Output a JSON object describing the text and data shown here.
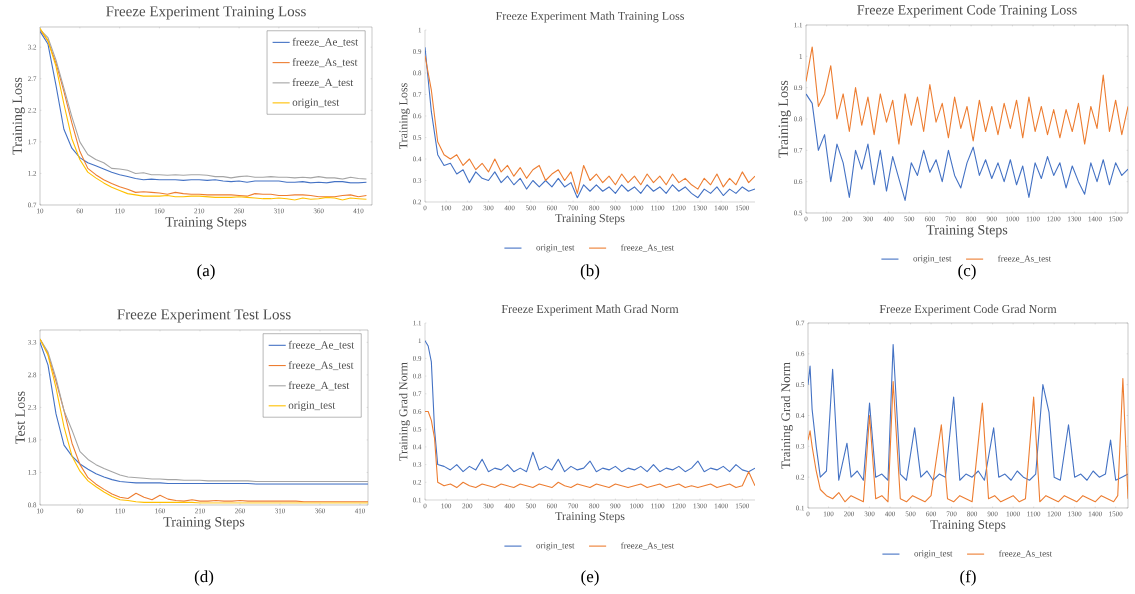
{
  "chart_data": [
    {
      "type": "line",
      "title": "Freeze Experiment Training Loss",
      "xlabel": "Training Steps",
      "ylabel": "Training Loss",
      "legend": "top right",
      "annotations": [
        "(a)"
      ],
      "xlim": [
        10,
        427
      ],
      "ylim": [
        0.7,
        3.52
      ],
      "xticks": [
        10,
        60,
        110,
        160,
        210,
        260,
        310,
        360,
        410
      ],
      "yticks": [
        0.7,
        1.2,
        1.7,
        2.2,
        2.7,
        3.2
      ],
      "x": [
        10,
        20,
        30,
        40,
        50,
        60,
        70,
        80,
        90,
        100,
        110,
        120,
        130,
        140,
        150,
        160,
        170,
        180,
        190,
        200,
        210,
        220,
        230,
        240,
        250,
        260,
        270,
        280,
        290,
        300,
        310,
        320,
        330,
        340,
        350,
        360,
        370,
        380,
        390,
        400,
        410,
        420
      ],
      "series": [
        {
          "name": "freeze_Ae_test",
          "color": "#4472c4",
          "values": [
            3.45,
            3.25,
            2.6,
            1.9,
            1.6,
            1.45,
            1.37,
            1.32,
            1.27,
            1.22,
            1.18,
            1.15,
            1.12,
            1.1,
            1.11,
            1.1,
            1.1,
            1.1,
            1.09,
            1.1,
            1.1,
            1.09,
            1.1,
            1.08,
            1.07,
            1.08,
            1.06,
            1.08,
            1.08,
            1.08,
            1.08,
            1.06,
            1.06,
            1.07,
            1.05,
            1.06,
            1.05,
            1.07,
            1.07,
            1.05,
            1.05,
            1.06
          ]
        },
        {
          "name": "freeze_As_test",
          "color": "#ed7d31",
          "values": [
            3.48,
            3.3,
            2.95,
            2.5,
            2.0,
            1.55,
            1.28,
            1.18,
            1.1,
            1.04,
            0.99,
            0.95,
            0.9,
            0.91,
            0.9,
            0.89,
            0.87,
            0.9,
            0.88,
            0.87,
            0.87,
            0.86,
            0.86,
            0.86,
            0.86,
            0.85,
            0.84,
            0.88,
            0.87,
            0.87,
            0.85,
            0.85,
            0.86,
            0.86,
            0.85,
            0.83,
            0.83,
            0.83,
            0.85,
            0.86,
            0.83,
            0.85
          ]
        },
        {
          "name": "freeze_A_test",
          "color": "#a5a5a5",
          "values": [
            3.48,
            3.35,
            3.0,
            2.55,
            2.1,
            1.7,
            1.5,
            1.42,
            1.37,
            1.28,
            1.27,
            1.25,
            1.2,
            1.21,
            1.18,
            1.18,
            1.17,
            1.18,
            1.17,
            1.18,
            1.18,
            1.17,
            1.15,
            1.15,
            1.13,
            1.15,
            1.16,
            1.14,
            1.14,
            1.15,
            1.14,
            1.14,
            1.13,
            1.14,
            1.13,
            1.15,
            1.13,
            1.13,
            1.11,
            1.14,
            1.12,
            1.11
          ]
        },
        {
          "name": "origin_test",
          "color": "#ffc000",
          "values": [
            3.5,
            3.3,
            2.9,
            2.3,
            1.75,
            1.42,
            1.22,
            1.13,
            1.05,
            0.98,
            0.93,
            0.88,
            0.86,
            0.84,
            0.84,
            0.84,
            0.85,
            0.83,
            0.83,
            0.84,
            0.84,
            0.83,
            0.82,
            0.82,
            0.82,
            0.83,
            0.82,
            0.81,
            0.8,
            0.8,
            0.81,
            0.8,
            0.78,
            0.81,
            0.79,
            0.8,
            0.82,
            0.81,
            0.78,
            0.81,
            0.8,
            0.79
          ]
        }
      ]
    },
    {
      "type": "line",
      "title": "Freeze Experiment Math Training Loss",
      "xlabel": "Training Steps",
      "ylabel": "Training Loss",
      "legend": "bottom",
      "annotations": [
        "(b)"
      ],
      "xlim": [
        0,
        1560
      ],
      "ylim": [
        0.2,
        1
      ],
      "xticks": [
        0,
        100,
        200,
        300,
        400,
        500,
        600,
        700,
        800,
        900,
        1000,
        1100,
        1200,
        1300,
        1400,
        1500
      ],
      "yticks": [
        0.2,
        0.3,
        0.4,
        0.5,
        0.6,
        0.7,
        0.8,
        0.9,
        1
      ],
      "x": [
        0,
        30,
        60,
        90,
        120,
        150,
        180,
        210,
        240,
        270,
        300,
        330,
        360,
        390,
        420,
        450,
        480,
        510,
        540,
        570,
        600,
        630,
        660,
        690,
        720,
        750,
        780,
        810,
        840,
        870,
        900,
        930,
        960,
        990,
        1020,
        1050,
        1080,
        1110,
        1140,
        1170,
        1200,
        1230,
        1260,
        1290,
        1320,
        1350,
        1380,
        1410,
        1440,
        1470,
        1500,
        1530,
        1560
      ],
      "series": [
        {
          "name": "origin_test",
          "color": "#4472c4",
          "values": [
            0.92,
            0.62,
            0.42,
            0.37,
            0.38,
            0.33,
            0.35,
            0.29,
            0.34,
            0.31,
            0.3,
            0.34,
            0.29,
            0.32,
            0.28,
            0.31,
            0.26,
            0.3,
            0.27,
            0.3,
            0.27,
            0.31,
            0.27,
            0.29,
            0.22,
            0.28,
            0.25,
            0.28,
            0.25,
            0.27,
            0.24,
            0.28,
            0.25,
            0.27,
            0.24,
            0.28,
            0.25,
            0.27,
            0.24,
            0.28,
            0.25,
            0.27,
            0.24,
            0.22,
            0.26,
            0.24,
            0.27,
            0.23,
            0.26,
            0.24,
            0.27,
            0.25,
            0.26
          ]
        },
        {
          "name": "freeze_As_test",
          "color": "#ed7d31",
          "values": [
            0.88,
            0.72,
            0.48,
            0.42,
            0.4,
            0.42,
            0.37,
            0.4,
            0.35,
            0.38,
            0.34,
            0.4,
            0.34,
            0.37,
            0.32,
            0.36,
            0.31,
            0.35,
            0.37,
            0.3,
            0.33,
            0.35,
            0.3,
            0.34,
            0.24,
            0.37,
            0.3,
            0.33,
            0.29,
            0.32,
            0.28,
            0.33,
            0.29,
            0.32,
            0.28,
            0.33,
            0.29,
            0.32,
            0.28,
            0.33,
            0.29,
            0.31,
            0.28,
            0.26,
            0.31,
            0.28,
            0.33,
            0.27,
            0.31,
            0.28,
            0.34,
            0.29,
            0.32
          ]
        }
      ]
    },
    {
      "type": "line",
      "title": "Freeze Experiment Code Training Loss",
      "xlabel": "Training Steps",
      "ylabel": "Training Loss",
      "legend": "bottom",
      "annotations": [
        "(c)"
      ],
      "xlim": [
        0,
        1560
      ],
      "ylim": [
        0.5,
        1.1
      ],
      "xticks": [
        0,
        100,
        200,
        300,
        400,
        500,
        600,
        700,
        800,
        900,
        1000,
        1100,
        1200,
        1300,
        1400,
        1500
      ],
      "yticks": [
        0.5,
        0.6,
        0.7,
        0.8,
        0.9,
        1,
        1.1
      ],
      "x": [
        0,
        30,
        60,
        90,
        120,
        150,
        180,
        210,
        240,
        270,
        300,
        330,
        360,
        390,
        420,
        450,
        480,
        510,
        540,
        570,
        600,
        630,
        660,
        690,
        720,
        750,
        780,
        810,
        840,
        870,
        900,
        930,
        960,
        990,
        1020,
        1050,
        1080,
        1110,
        1140,
        1170,
        1200,
        1230,
        1260,
        1290,
        1320,
        1350,
        1380,
        1410,
        1440,
        1470,
        1500,
        1530,
        1560
      ],
      "series": [
        {
          "name": "origin_test",
          "color": "#4472c4",
          "values": [
            0.88,
            0.85,
            0.7,
            0.75,
            0.6,
            0.72,
            0.66,
            0.55,
            0.7,
            0.64,
            0.72,
            0.59,
            0.7,
            0.57,
            0.68,
            0.61,
            0.54,
            0.66,
            0.62,
            0.7,
            0.63,
            0.67,
            0.6,
            0.7,
            0.62,
            0.58,
            0.66,
            0.71,
            0.62,
            0.67,
            0.61,
            0.66,
            0.6,
            0.67,
            0.59,
            0.65,
            0.55,
            0.66,
            0.61,
            0.68,
            0.62,
            0.66,
            0.58,
            0.65,
            0.6,
            0.56,
            0.66,
            0.6,
            0.67,
            0.59,
            0.66,
            0.62,
            0.64
          ]
        },
        {
          "name": "freeze_As_test",
          "color": "#ed7d31",
          "values": [
            0.92,
            1.03,
            0.84,
            0.88,
            0.97,
            0.8,
            0.88,
            0.76,
            0.9,
            0.78,
            0.87,
            0.75,
            0.88,
            0.79,
            0.86,
            0.72,
            0.88,
            0.78,
            0.87,
            0.76,
            0.91,
            0.79,
            0.85,
            0.74,
            0.87,
            0.77,
            0.84,
            0.73,
            0.86,
            0.76,
            0.84,
            0.75,
            0.85,
            0.77,
            0.86,
            0.74,
            0.87,
            0.76,
            0.84,
            0.75,
            0.83,
            0.74,
            0.83,
            0.76,
            0.85,
            0.72,
            0.84,
            0.77,
            0.94,
            0.76,
            0.86,
            0.75,
            0.84
          ]
        }
      ]
    },
    {
      "type": "line",
      "title": "Freeze Experiment Test Loss",
      "xlabel": "Training Steps",
      "ylabel": "Test Loss",
      "legend": "top right",
      "annotations": [
        "(d)"
      ],
      "xlim": [
        10,
        420
      ],
      "ylim": [
        0.8,
        3.49
      ],
      "xticks": [
        10,
        60,
        110,
        160,
        210,
        260,
        310,
        360,
        410
      ],
      "yticks": [
        0.8,
        1.3,
        1.8,
        2.3,
        2.8,
        3.3
      ],
      "x": [
        10,
        20,
        30,
        40,
        50,
        60,
        70,
        80,
        90,
        100,
        110,
        120,
        130,
        140,
        150,
        160,
        170,
        180,
        190,
        200,
        210,
        220,
        230,
        240,
        250,
        260,
        270,
        280,
        290,
        300,
        310,
        320,
        330,
        340,
        350,
        360,
        370,
        380,
        390,
        400,
        410,
        420
      ],
      "series": [
        {
          "name": "freeze_Ae_test",
          "color": "#4472c4",
          "values": [
            3.3,
            2.95,
            2.2,
            1.72,
            1.55,
            1.43,
            1.35,
            1.28,
            1.23,
            1.19,
            1.16,
            1.15,
            1.14,
            1.14,
            1.14,
            1.14,
            1.13,
            1.13,
            1.13,
            1.13,
            1.13,
            1.13,
            1.13,
            1.13,
            1.13,
            1.13,
            1.13,
            1.12,
            1.12,
            1.12,
            1.12,
            1.12,
            1.12,
            1.12,
            1.12,
            1.12,
            1.12,
            1.12,
            1.12,
            1.12,
            1.12,
            1.12
          ]
        },
        {
          "name": "freeze_As_test",
          "color": "#ed7d31",
          "values": [
            3.35,
            3.12,
            2.7,
            2.25,
            1.75,
            1.42,
            1.22,
            1.12,
            1.04,
            0.97,
            0.92,
            0.9,
            0.98,
            0.92,
            0.88,
            0.95,
            0.89,
            0.87,
            0.86,
            0.88,
            0.86,
            0.86,
            0.87,
            0.86,
            0.86,
            0.87,
            0.86,
            0.86,
            0.86,
            0.86,
            0.86,
            0.86,
            0.86,
            0.85,
            0.85,
            0.85,
            0.85,
            0.85,
            0.85,
            0.85,
            0.85,
            0.85
          ]
        },
        {
          "name": "freeze_A_test",
          "color": "#a5a5a5",
          "values": [
            3.35,
            3.15,
            2.75,
            2.25,
            1.95,
            1.62,
            1.5,
            1.42,
            1.36,
            1.31,
            1.26,
            1.23,
            1.22,
            1.21,
            1.2,
            1.2,
            1.19,
            1.19,
            1.18,
            1.18,
            1.18,
            1.17,
            1.17,
            1.17,
            1.17,
            1.17,
            1.17,
            1.16,
            1.16,
            1.16,
            1.16,
            1.16,
            1.16,
            1.16,
            1.16,
            1.16,
            1.16,
            1.16,
            1.16,
            1.16,
            1.16,
            1.16
          ]
        },
        {
          "name": "origin_test",
          "color": "#ffc000",
          "values": [
            3.35,
            3.1,
            2.6,
            2.0,
            1.55,
            1.32,
            1.17,
            1.08,
            1.0,
            0.93,
            0.88,
            0.87,
            0.85,
            0.84,
            0.84,
            0.84,
            0.84,
            0.84,
            0.84,
            0.84,
            0.83,
            0.83,
            0.83,
            0.83,
            0.83,
            0.83,
            0.83,
            0.83,
            0.83,
            0.83,
            0.83,
            0.83,
            0.83,
            0.83,
            0.83,
            0.83,
            0.83,
            0.83,
            0.83,
            0.83,
            0.83,
            0.83
          ]
        }
      ]
    },
    {
      "type": "line",
      "title": "Freeze Experiment Math Grad Norm",
      "xlabel": "Training Steps",
      "ylabel": "Training Grad Norm",
      "legend": "bottom",
      "annotations": [
        "(e)"
      ],
      "xlim": [
        0,
        1560
      ],
      "ylim": [
        0.1,
        1.1
      ],
      "xticks": [
        0,
        100,
        200,
        300,
        400,
        500,
        600,
        700,
        800,
        900,
        1000,
        1100,
        1200,
        1300,
        1400,
        1500
      ],
      "yticks": [
        0.1,
        0.2,
        0.3,
        0.4,
        0.5,
        0.6,
        0.7,
        0.8,
        0.9,
        1,
        1.1
      ],
      "x": [
        0,
        15,
        30,
        45,
        60,
        90,
        120,
        150,
        180,
        210,
        240,
        270,
        300,
        330,
        360,
        390,
        420,
        450,
        480,
        510,
        540,
        570,
        600,
        630,
        660,
        690,
        720,
        750,
        780,
        810,
        840,
        870,
        900,
        930,
        960,
        990,
        1020,
        1050,
        1080,
        1110,
        1140,
        1170,
        1200,
        1230,
        1260,
        1290,
        1320,
        1350,
        1380,
        1410,
        1440,
        1470,
        1500,
        1530,
        1560
      ],
      "series": [
        {
          "name": "origin_test",
          "color": "#4472c4",
          "values": [
            1.0,
            0.97,
            0.88,
            0.5,
            0.3,
            0.29,
            0.27,
            0.3,
            0.26,
            0.29,
            0.27,
            0.33,
            0.26,
            0.28,
            0.27,
            0.3,
            0.26,
            0.28,
            0.26,
            0.37,
            0.27,
            0.29,
            0.27,
            0.33,
            0.26,
            0.29,
            0.27,
            0.28,
            0.32,
            0.26,
            0.28,
            0.27,
            0.29,
            0.26,
            0.28,
            0.27,
            0.29,
            0.26,
            0.3,
            0.26,
            0.28,
            0.27,
            0.29,
            0.26,
            0.28,
            0.32,
            0.26,
            0.28,
            0.27,
            0.29,
            0.26,
            0.3,
            0.27,
            0.26,
            0.28
          ]
        },
        {
          "name": "freeze_As_test",
          "color": "#ed7d31",
          "values": [
            0.6,
            0.6,
            0.55,
            0.45,
            0.2,
            0.18,
            0.19,
            0.17,
            0.2,
            0.18,
            0.17,
            0.19,
            0.18,
            0.17,
            0.19,
            0.18,
            0.17,
            0.19,
            0.18,
            0.17,
            0.19,
            0.18,
            0.17,
            0.2,
            0.18,
            0.17,
            0.19,
            0.18,
            0.17,
            0.19,
            0.18,
            0.17,
            0.19,
            0.18,
            0.17,
            0.18,
            0.19,
            0.17,
            0.18,
            0.19,
            0.17,
            0.18,
            0.19,
            0.17,
            0.18,
            0.17,
            0.18,
            0.19,
            0.17,
            0.18,
            0.19,
            0.17,
            0.18,
            0.26,
            0.18
          ]
        }
      ]
    },
    {
      "type": "line",
      "title": "Freeze Experiment Code Grad Norm",
      "xlabel": "Training Steps",
      "ylabel": "Training Grad Norm",
      "legend": "bottom",
      "annotations": [
        "(f)"
      ],
      "xlim": [
        0,
        1560
      ],
      "ylim": [
        0.1,
        0.7
      ],
      "xticks": [
        0,
        100,
        200,
        300,
        400,
        500,
        600,
        700,
        800,
        900,
        1000,
        1100,
        1200,
        1300,
        1400,
        1500
      ],
      "yticks": [
        0.1,
        0.2,
        0.3,
        0.4,
        0.5,
        0.6,
        0.7
      ],
      "series": [
        {
          "name": "origin_test",
          "color": "#4472c4",
          "x": [
            0,
            10,
            20,
            40,
            60,
            90,
            120,
            150,
            190,
            210,
            240,
            270,
            300,
            330,
            360,
            390,
            415,
            450,
            480,
            520,
            550,
            580,
            610,
            640,
            670,
            710,
            740,
            770,
            800,
            830,
            860,
            905,
            930,
            960,
            990,
            1020,
            1050,
            1080,
            1110,
            1145,
            1175,
            1200,
            1230,
            1270,
            1300,
            1330,
            1360,
            1390,
            1420,
            1450,
            1475,
            1500,
            1530,
            1560
          ],
          "values": [
            0.5,
            0.56,
            0.42,
            0.3,
            0.2,
            0.22,
            0.55,
            0.19,
            0.31,
            0.2,
            0.22,
            0.19,
            0.44,
            0.2,
            0.21,
            0.19,
            0.63,
            0.21,
            0.19,
            0.36,
            0.2,
            0.22,
            0.19,
            0.21,
            0.2,
            0.46,
            0.19,
            0.21,
            0.2,
            0.22,
            0.19,
            0.36,
            0.2,
            0.21,
            0.19,
            0.22,
            0.2,
            0.19,
            0.21,
            0.5,
            0.41,
            0.2,
            0.19,
            0.37,
            0.2,
            0.21,
            0.19,
            0.22,
            0.2,
            0.21,
            0.32,
            0.19,
            0.2,
            0.21
          ]
        },
        {
          "name": "freeze_As_test",
          "color": "#ed7d31",
          "x": [
            0,
            10,
            20,
            40,
            60,
            90,
            120,
            150,
            180,
            210,
            240,
            270,
            300,
            330,
            360,
            390,
            415,
            450,
            480,
            510,
            540,
            570,
            600,
            650,
            680,
            710,
            740,
            770,
            800,
            850,
            880,
            910,
            940,
            970,
            1000,
            1030,
            1060,
            1100,
            1130,
            1160,
            1190,
            1220,
            1250,
            1280,
            1310,
            1340,
            1370,
            1400,
            1430,
            1460,
            1490,
            1510,
            1535,
            1560
          ],
          "values": [
            0.32,
            0.35,
            0.3,
            0.22,
            0.16,
            0.14,
            0.13,
            0.15,
            0.12,
            0.14,
            0.13,
            0.12,
            0.4,
            0.13,
            0.14,
            0.12,
            0.51,
            0.13,
            0.12,
            0.14,
            0.13,
            0.12,
            0.14,
            0.37,
            0.13,
            0.12,
            0.14,
            0.13,
            0.12,
            0.44,
            0.13,
            0.14,
            0.12,
            0.13,
            0.14,
            0.12,
            0.13,
            0.46,
            0.12,
            0.14,
            0.13,
            0.12,
            0.14,
            0.13,
            0.12,
            0.14,
            0.13,
            0.12,
            0.14,
            0.13,
            0.12,
            0.14,
            0.52,
            0.13
          ]
        }
      ]
    }
  ]
}
